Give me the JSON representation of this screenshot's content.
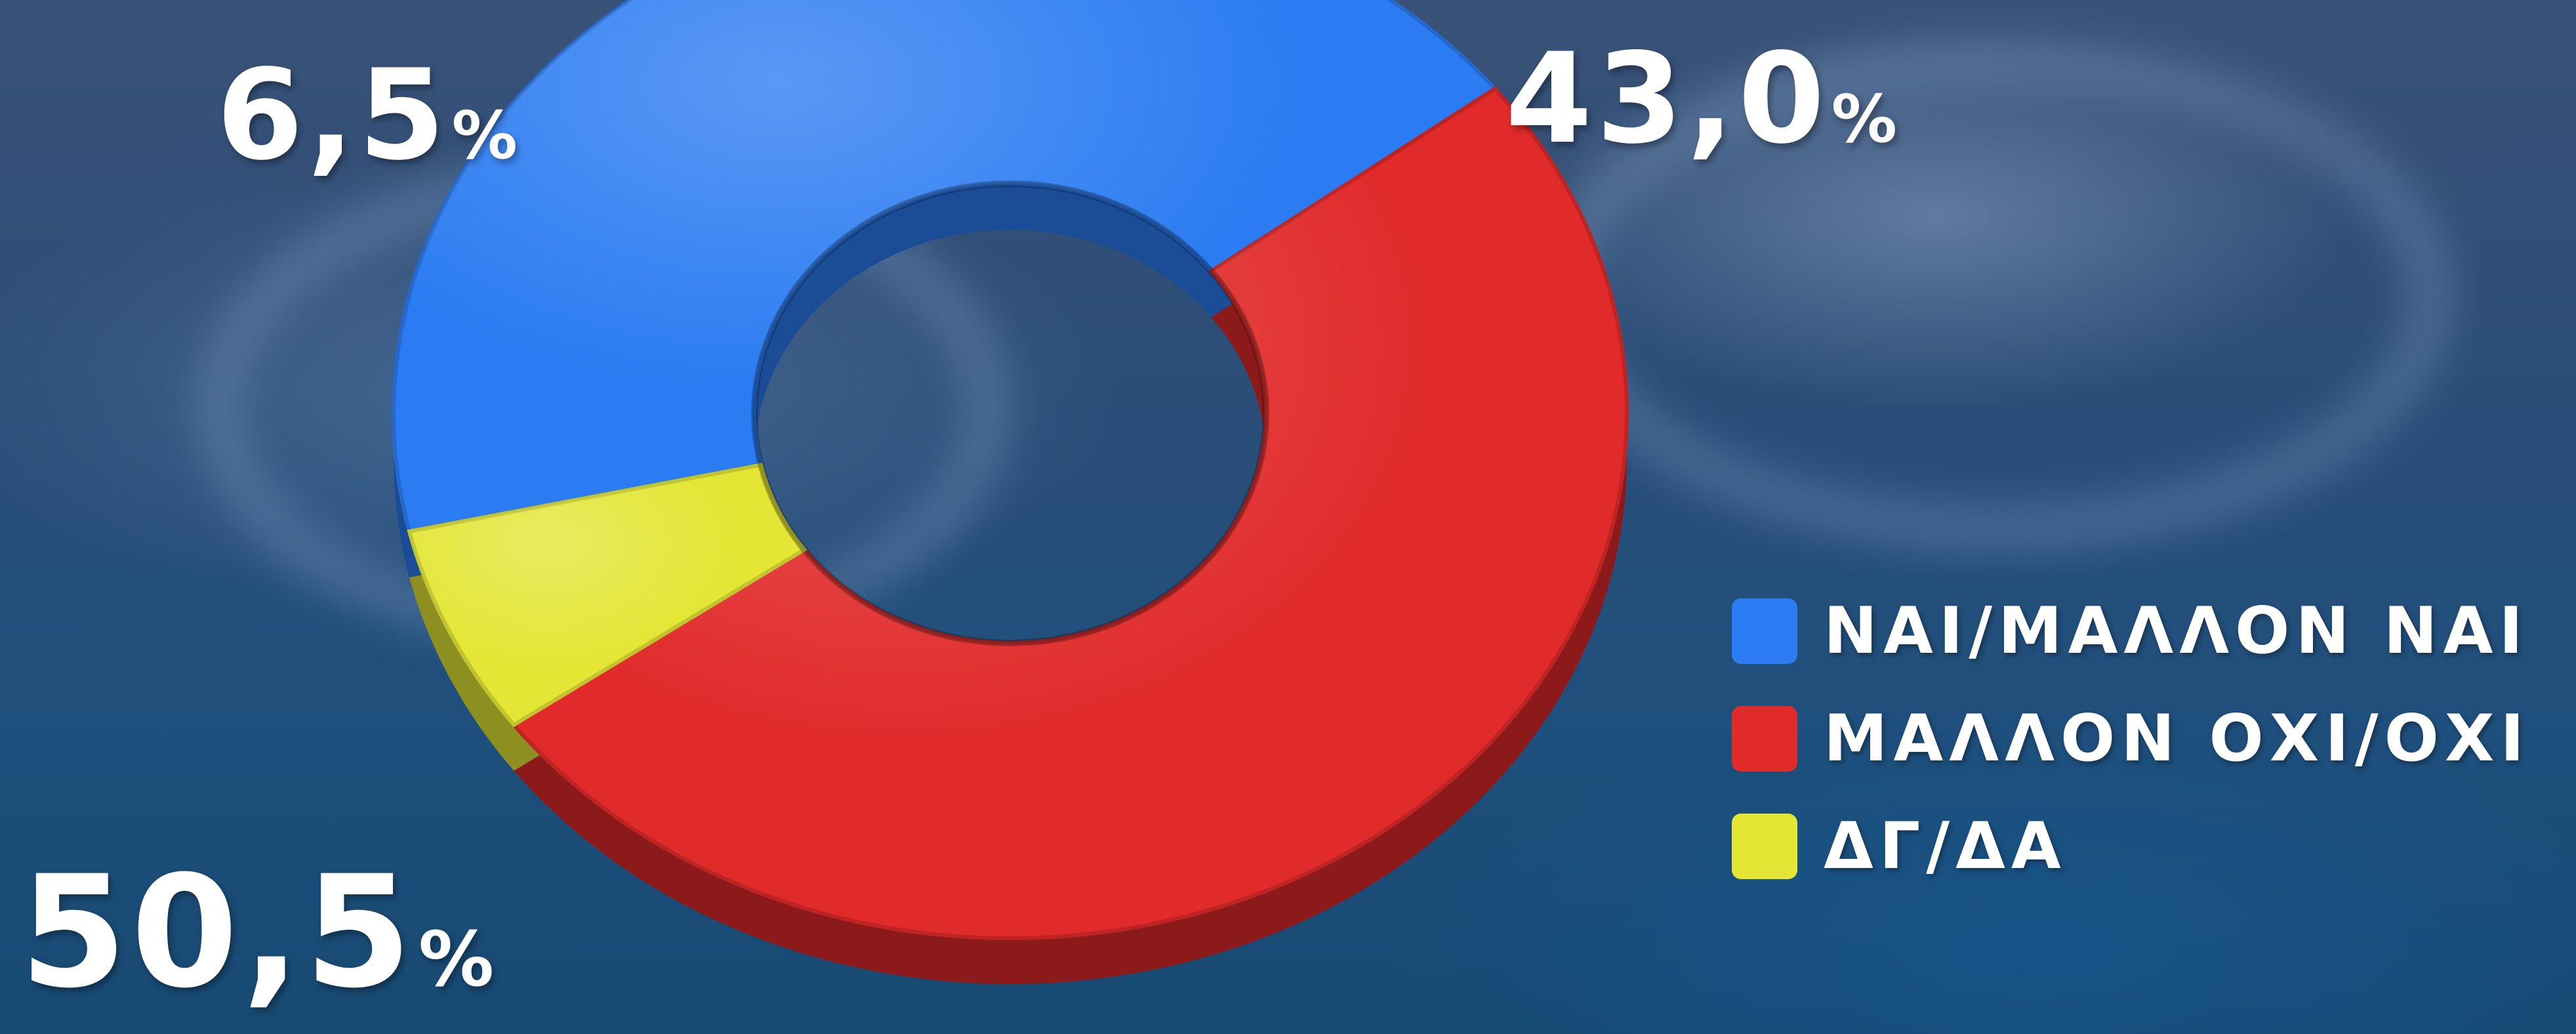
{
  "chart_data": {
    "type": "pie",
    "categories": [
      "ΝΑΙ/ΜΑΛΛΟΝ ΝΑΙ",
      "ΜΑΛΛΟΝ ΟΧΙ/ΟΧΙ",
      "ΔΓ/ΔΑ"
    ],
    "values": [
      43.0,
      50.5,
      6.5
    ],
    "value_labels": [
      "43,0",
      "50,5",
      "6,5"
    ],
    "unit": "%",
    "colors": [
      "#2b7cf2",
      "#e12a2a",
      "#e3e634"
    ],
    "style": "donut",
    "legend_position": "right"
  }
}
